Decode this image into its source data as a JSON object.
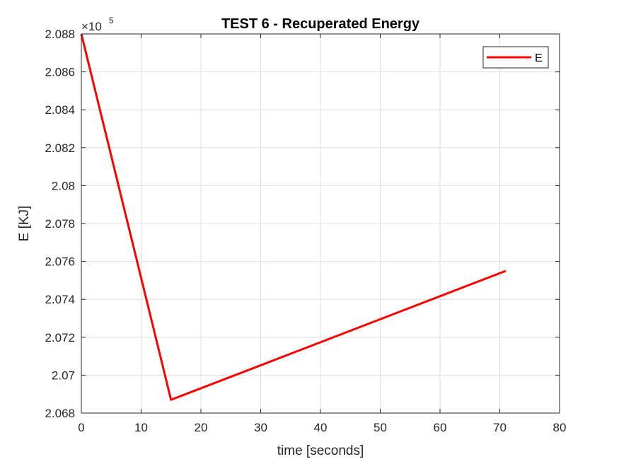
{
  "chart_data": {
    "type": "line",
    "title": "TEST 6 - Recuperated Energy",
    "xlabel": "time [seconds]",
    "ylabel": "E [KJ]",
    "y_exponent_base": "×10",
    "y_exponent_power": "5",
    "xlim": [
      0,
      80
    ],
    "ylim": [
      2.068,
      2.088
    ],
    "x_ticks": [
      0,
      10,
      20,
      30,
      40,
      50,
      60,
      70,
      80
    ],
    "x_tick_labels": [
      "0",
      "10",
      "20",
      "30",
      "40",
      "50",
      "60",
      "70",
      "80"
    ],
    "y_ticks": [
      2.068,
      2.07,
      2.072,
      2.074,
      2.076,
      2.078,
      2.08,
      2.082,
      2.084,
      2.086,
      2.088
    ],
    "y_tick_labels": [
      "2.068",
      "2.07",
      "2.072",
      "2.074",
      "2.076",
      "2.078",
      "2.08",
      "2.082",
      "2.084",
      "2.086",
      "2.088"
    ],
    "grid": true,
    "legend_position": "top-right",
    "series": [
      {
        "name": "E",
        "color": "#ff0000",
        "x": [
          0,
          15,
          71
        ],
        "y": [
          2.088,
          2.0687,
          2.0755
        ]
      }
    ]
  }
}
